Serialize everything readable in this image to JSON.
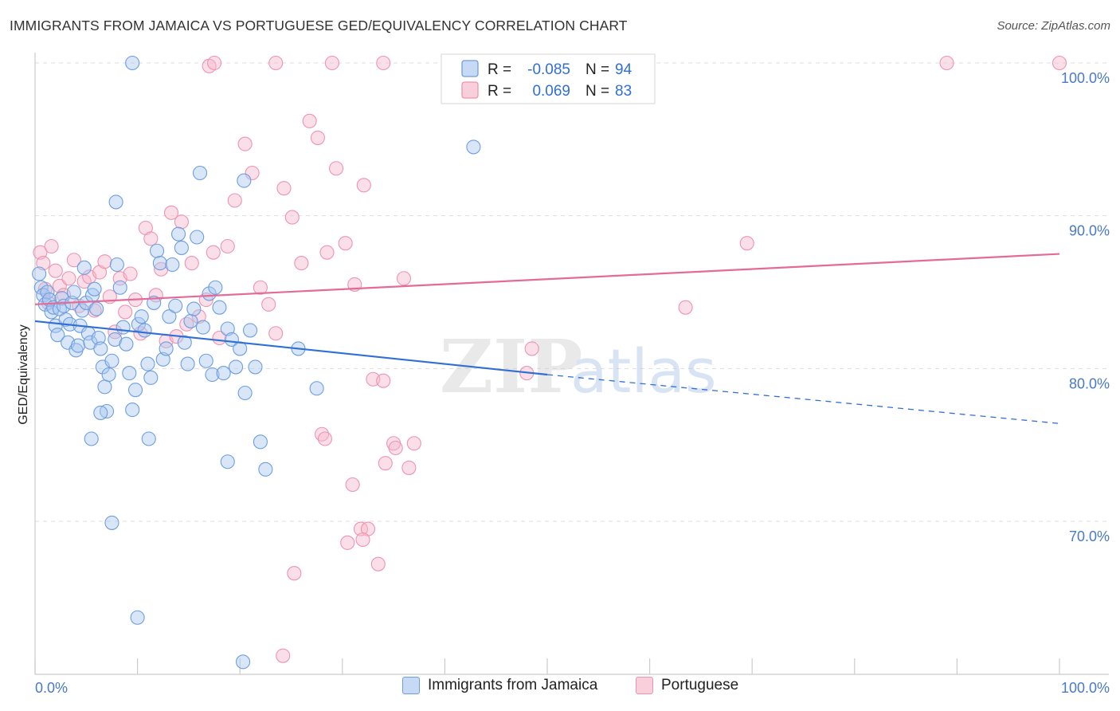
{
  "header": {
    "title": "IMMIGRANTS FROM JAMAICA VS PORTUGUESE GED/EQUIVALENCY CORRELATION CHART",
    "source": "Source: ZipAtlas.com"
  },
  "watermark": {
    "zip": "ZIP",
    "atlas": "atlas"
  },
  "colors": {
    "jamaica_fill": "#a9c7ef",
    "jamaica_stroke": "#6e9ee0",
    "jamaica_line": "#2f6fd6",
    "portuguese_fill": "#f6b8cb",
    "portuguese_stroke": "#ee94b0",
    "portuguese_line": "#e46b96",
    "grid": "#dddddd",
    "axis_label": "#4a79c8"
  },
  "legend_box": {
    "row1": {
      "r_label": "R =",
      "r_value": "-0.085",
      "n_label": "N =",
      "n_value": "94"
    },
    "row2": {
      "r_label": "R =",
      "r_value": "0.069",
      "n_label": "N =",
      "n_value": "83"
    }
  },
  "bottom_legend": {
    "jamaica": "Immigrants from Jamaica",
    "portuguese": "Portuguese"
  },
  "chart_data": {
    "type": "scatter",
    "title": "IMMIGRANTS FROM JAMAICA VS PORTUGUESE GED/EQUIVALENCY CORRELATION CHART",
    "xlabel": "",
    "ylabel": "GED/Equivalency",
    "xlim": [
      0,
      100
    ],
    "ylim": [
      60,
      102
    ],
    "x_tick_labels": [
      "0.0%",
      "100.0%"
    ],
    "y_ticks": [
      70,
      80,
      90,
      100
    ],
    "y_tick_labels": [
      "70.0%",
      "80.0%",
      "90.0%",
      "100.0%"
    ],
    "grid": true,
    "legend_position": "top-center",
    "series": [
      {
        "name": "Immigrants from Jamaica",
        "r": -0.085,
        "n": 94,
        "trend": {
          "solid": [
            [
              0,
              83.1
            ],
            [
              50,
              79.6
            ]
          ],
          "dashed": [
            [
              50,
              79.6
            ],
            [
              100,
              76.4
            ]
          ]
        },
        "points": [
          [
            0.4,
            86.2
          ],
          [
            0.6,
            85.3
          ],
          [
            0.8,
            84.8
          ],
          [
            1.0,
            84.2
          ],
          [
            1.2,
            85.0
          ],
          [
            1.4,
            84.5
          ],
          [
            1.6,
            83.7
          ],
          [
            1.8,
            84.0
          ],
          [
            2.0,
            82.8
          ],
          [
            2.2,
            82.2
          ],
          [
            2.4,
            83.9
          ],
          [
            2.6,
            84.6
          ],
          [
            2.8,
            84.1
          ],
          [
            3.0,
            83.2
          ],
          [
            3.2,
            81.7
          ],
          [
            3.4,
            82.9
          ],
          [
            3.6,
            84.3
          ],
          [
            3.8,
            85.0
          ],
          [
            4.0,
            81.2
          ],
          [
            4.2,
            81.5
          ],
          [
            4.4,
            82.8
          ],
          [
            4.6,
            83.8
          ],
          [
            4.8,
            86.6
          ],
          [
            5.0,
            84.3
          ],
          [
            5.2,
            82.3
          ],
          [
            5.4,
            81.7
          ],
          [
            5.6,
            84.8
          ],
          [
            5.8,
            85.2
          ],
          [
            6.0,
            83.9
          ],
          [
            6.2,
            82.0
          ],
          [
            6.4,
            81.3
          ],
          [
            6.6,
            80.1
          ],
          [
            6.8,
            78.8
          ],
          [
            7.0,
            77.2
          ],
          [
            7.2,
            79.6
          ],
          [
            7.5,
            80.5
          ],
          [
            7.8,
            81.9
          ],
          [
            8.0,
            86.8
          ],
          [
            8.3,
            85.3
          ],
          [
            8.6,
            82.7
          ],
          [
            8.9,
            81.6
          ],
          [
            9.2,
            79.7
          ],
          [
            9.5,
            77.3
          ],
          [
            9.8,
            78.6
          ],
          [
            10.1,
            82.9
          ],
          [
            10.4,
            83.4
          ],
          [
            10.7,
            82.5
          ],
          [
            11.0,
            80.3
          ],
          [
            11.3,
            79.4
          ],
          [
            11.6,
            84.3
          ],
          [
            11.9,
            87.7
          ],
          [
            12.2,
            86.9
          ],
          [
            12.5,
            80.6
          ],
          [
            12.8,
            81.3
          ],
          [
            13.1,
            83.4
          ],
          [
            13.4,
            86.8
          ],
          [
            13.7,
            84.1
          ],
          [
            14.0,
            88.8
          ],
          [
            14.3,
            87.9
          ],
          [
            14.6,
            81.7
          ],
          [
            14.9,
            80.3
          ],
          [
            15.2,
            83.1
          ],
          [
            15.5,
            83.9
          ],
          [
            15.8,
            88.6
          ],
          [
            16.1,
            92.8
          ],
          [
            16.4,
            82.7
          ],
          [
            16.7,
            80.5
          ],
          [
            17.0,
            84.9
          ],
          [
            17.3,
            79.6
          ],
          [
            17.6,
            85.3
          ],
          [
            18.0,
            84.0
          ],
          [
            18.4,
            79.7
          ],
          [
            18.8,
            82.6
          ],
          [
            19.2,
            81.9
          ],
          [
            19.6,
            80.1
          ],
          [
            20.0,
            81.3
          ],
          [
            20.5,
            78.4
          ],
          [
            21.0,
            82.5
          ],
          [
            21.5,
            80.1
          ],
          [
            22.0,
            75.2
          ],
          [
            22.5,
            73.4
          ],
          [
            9.5,
            100
          ],
          [
            7.9,
            90.9
          ],
          [
            20.4,
            92.3
          ],
          [
            42.8,
            94.5
          ],
          [
            5.5,
            75.4
          ],
          [
            6.4,
            77.1
          ],
          [
            11.1,
            75.4
          ],
          [
            18.8,
            73.9
          ],
          [
            7.5,
            69.9
          ],
          [
            10.0,
            63.7
          ],
          [
            20.3,
            60.8
          ],
          [
            25.7,
            81.3
          ],
          [
            27.5,
            78.7
          ]
        ]
      },
      {
        "name": "Portuguese",
        "r": 0.069,
        "n": 83,
        "trend": {
          "solid": [
            [
              0,
              84.2
            ],
            [
              100,
              87.5
            ]
          ]
        },
        "points": [
          [
            0.5,
            87.6
          ],
          [
            0.8,
            86.9
          ],
          [
            1.0,
            85.2
          ],
          [
            1.3,
            84.3
          ],
          [
            1.6,
            88.0
          ],
          [
            2.0,
            86.4
          ],
          [
            2.4,
            85.4
          ],
          [
            2.8,
            84.8
          ],
          [
            3.3,
            85.9
          ],
          [
            3.8,
            87.1
          ],
          [
            4.3,
            84.1
          ],
          [
            4.8,
            85.7
          ],
          [
            5.3,
            86.0
          ],
          [
            5.8,
            83.8
          ],
          [
            6.3,
            86.3
          ],
          [
            6.8,
            87.0
          ],
          [
            7.3,
            84.7
          ],
          [
            7.8,
            82.4
          ],
          [
            8.3,
            85.9
          ],
          [
            8.8,
            83.7
          ],
          [
            9.3,
            86.2
          ],
          [
            9.8,
            84.5
          ],
          [
            10.3,
            82.3
          ],
          [
            10.8,
            89.2
          ],
          [
            11.3,
            88.5
          ],
          [
            11.8,
            84.8
          ],
          [
            12.3,
            86.5
          ],
          [
            12.8,
            81.8
          ],
          [
            13.3,
            90.2
          ],
          [
            13.8,
            82.1
          ],
          [
            14.3,
            89.6
          ],
          [
            14.8,
            82.9
          ],
          [
            15.3,
            86.9
          ],
          [
            16.0,
            83.4
          ],
          [
            16.7,
            84.5
          ],
          [
            17.4,
            87.6
          ],
          [
            18.0,
            82.0
          ],
          [
            18.8,
            88.0
          ],
          [
            19.5,
            91.0
          ],
          [
            20.5,
            94.7
          ],
          [
            21.2,
            92.8
          ],
          [
            22.0,
            85.3
          ],
          [
            22.8,
            84.2
          ],
          [
            23.5,
            82.3
          ],
          [
            24.3,
            91.8
          ],
          [
            25.1,
            89.9
          ],
          [
            26.0,
            86.9
          ],
          [
            26.8,
            96.2
          ],
          [
            27.6,
            95.1
          ],
          [
            28.5,
            87.6
          ],
          [
            29.4,
            93.1
          ],
          [
            30.3,
            88.2
          ],
          [
            31.2,
            85.5
          ],
          [
            32.1,
            92.0
          ],
          [
            33.0,
            79.3
          ],
          [
            34.0,
            79.2
          ],
          [
            35.0,
            75.1
          ],
          [
            36.0,
            85.9
          ],
          [
            37.0,
            75.1
          ],
          [
            28.0,
            75.7
          ],
          [
            28.3,
            75.4
          ],
          [
            31.0,
            72.4
          ],
          [
            31.8,
            69.5
          ],
          [
            32.5,
            69.5
          ],
          [
            33.5,
            67.2
          ],
          [
            32.0,
            68.8
          ],
          [
            30.5,
            68.6
          ],
          [
            25.3,
            66.6
          ],
          [
            24.2,
            61.2
          ],
          [
            34.2,
            73.8
          ],
          [
            35.2,
            74.8
          ],
          [
            36.5,
            73.5
          ],
          [
            48.5,
            81.3
          ],
          [
            48.0,
            79.7
          ],
          [
            63.5,
            84.0
          ],
          [
            69.5,
            88.2
          ],
          [
            17.0,
            99.8
          ],
          [
            17.5,
            100
          ],
          [
            23.5,
            100
          ],
          [
            29.0,
            100
          ],
          [
            34.0,
            100
          ],
          [
            89.0,
            100
          ],
          [
            100,
            100
          ]
        ]
      }
    ]
  }
}
